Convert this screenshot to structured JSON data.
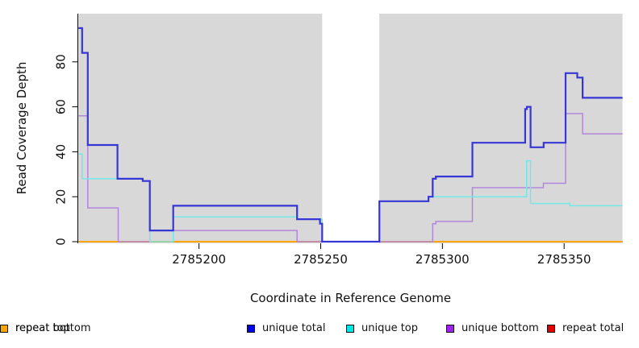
{
  "figure_type": "read-coverage-step-plot",
  "legend": {
    "items": [
      {
        "label": "unique total",
        "color": "#0000e6"
      },
      {
        "label": "unique top",
        "color": "#00e6e6"
      },
      {
        "label": "unique bottom",
        "color": "#a020f0"
      },
      {
        "label": "repeat total",
        "color": "#e60000"
      },
      {
        "label": "repeat top",
        "color": "#ffff00"
      },
      {
        "label": "repeat bottom",
        "color": "#ffa500"
      }
    ]
  },
  "chart_data": {
    "type": "line",
    "subtype": "step",
    "title": "",
    "xlabel": "Coordinate in Reference Genome",
    "ylabel": "Read Coverage Depth",
    "xlim": [
      2785150.5,
      2785374
    ],
    "ylim": [
      0,
      101
    ],
    "x_ticks": [
      2785200,
      2785250,
      2785300,
      2785350
    ],
    "y_ticks": [
      0,
      20,
      40,
      60,
      80
    ],
    "grid": false,
    "legend_position": "bottom",
    "background": {
      "plot_fill": "#d8d8d8",
      "gap_region": {
        "x_start": 2785250.6,
        "x_end": 2785274.1,
        "fill": "#ffffff"
      }
    },
    "series": [
      {
        "name": "repeat total",
        "color": "#e60000",
        "width": 1.4,
        "layer": "under_gap",
        "points": [
          [
            2785150.5,
            0
          ]
        ]
      },
      {
        "name": "repeat top",
        "color": "#f0f000",
        "width": 1.4,
        "layer": "under_gap",
        "points": [
          [
            2785150.5,
            0
          ]
        ]
      },
      {
        "name": "repeat bottom",
        "color": "#ffa500",
        "width": 2,
        "layer": "under_gap",
        "points": [
          [
            2785150.5,
            0
          ]
        ]
      },
      {
        "name": "unique bottom",
        "color": "#b286dd",
        "width": 1.5,
        "layer": "over_gap",
        "points": [
          [
            2785150.5,
            56
          ],
          [
            2785154.3,
            15
          ],
          [
            2785166.8,
            0
          ],
          [
            2785179.8,
            5
          ],
          [
            2785240.3,
            0
          ],
          [
            2785296.0,
            8
          ],
          [
            2785297.3,
            9
          ],
          [
            2785312.3,
            24
          ],
          [
            2785341.5,
            26
          ],
          [
            2785350.6,
            57
          ],
          [
            2785357.6,
            48
          ]
        ]
      },
      {
        "name": "unique top",
        "color": "#74e7e7",
        "width": 1.5,
        "layer": "over_gap",
        "points": [
          [
            2785150.5,
            39
          ],
          [
            2785152.0,
            28
          ],
          [
            2785176.9,
            27
          ],
          [
            2785179.8,
            0
          ],
          [
            2785189.4,
            11
          ],
          [
            2785240.3,
            10
          ],
          [
            2785250.6,
            0
          ],
          [
            2785274.1,
            18
          ],
          [
            2785294.3,
            20
          ],
          [
            2785334.6,
            36
          ],
          [
            2785336.2,
            17
          ],
          [
            2785352.3,
            16
          ]
        ]
      },
      {
        "name": "unique total",
        "color": "#3636d6",
        "width": 2.2,
        "layer": "over_gap",
        "points": [
          [
            2785150.5,
            95
          ],
          [
            2785152.0,
            84
          ],
          [
            2785154.3,
            43
          ],
          [
            2785166.5,
            28
          ],
          [
            2785176.9,
            27
          ],
          [
            2785179.8,
            5
          ],
          [
            2785189.4,
            16
          ],
          [
            2785240.3,
            10
          ],
          [
            2785249.7,
            8
          ],
          [
            2785250.6,
            0
          ],
          [
            2785274.1,
            18
          ],
          [
            2785294.3,
            20
          ],
          [
            2785296.0,
            28
          ],
          [
            2785297.3,
            29
          ],
          [
            2785312.3,
            44
          ],
          [
            2785334.0,
            59
          ],
          [
            2785334.7,
            60
          ],
          [
            2785336.2,
            42
          ],
          [
            2785341.6,
            44
          ],
          [
            2785350.6,
            75
          ],
          [
            2785355.4,
            73
          ],
          [
            2785357.6,
            64
          ]
        ]
      }
    ]
  }
}
